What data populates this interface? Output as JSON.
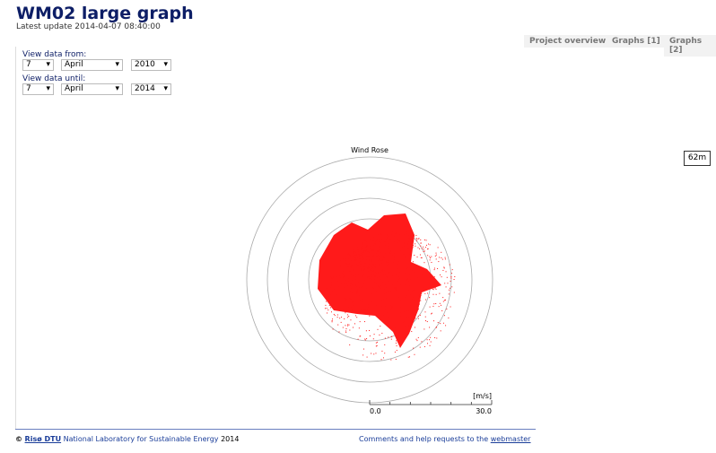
{
  "header": {
    "title": "WM02 large graph",
    "update": "Latest update 2014-04-07 08:40:00"
  },
  "tabs": [
    "Project overview",
    "Graphs [1]",
    "Graphs [2]"
  ],
  "filters": [
    {
      "label": "View data from:",
      "day": "7",
      "month": "April",
      "year": "2010"
    },
    {
      "label": "View data until:",
      "day": "7",
      "month": "April",
      "year": "2014"
    }
  ],
  "height_button": "62m",
  "wind_rose": {
    "title": "Wind Rose",
    "unit": "[m/s]",
    "scale_lim": [
      0,
      30
    ],
    "scale_ticks": [
      {
        "value": 0,
        "label": "0.0"
      },
      {
        "value": 30,
        "label": "30.0"
      }
    ]
  },
  "footer": {
    "copyright": "©",
    "org": "Risø DTU",
    "lab": "National Laboratory for Sustainable Energy",
    "year": "2014",
    "comments": "Comments and help requests to the",
    "link": "webmaster"
  }
}
